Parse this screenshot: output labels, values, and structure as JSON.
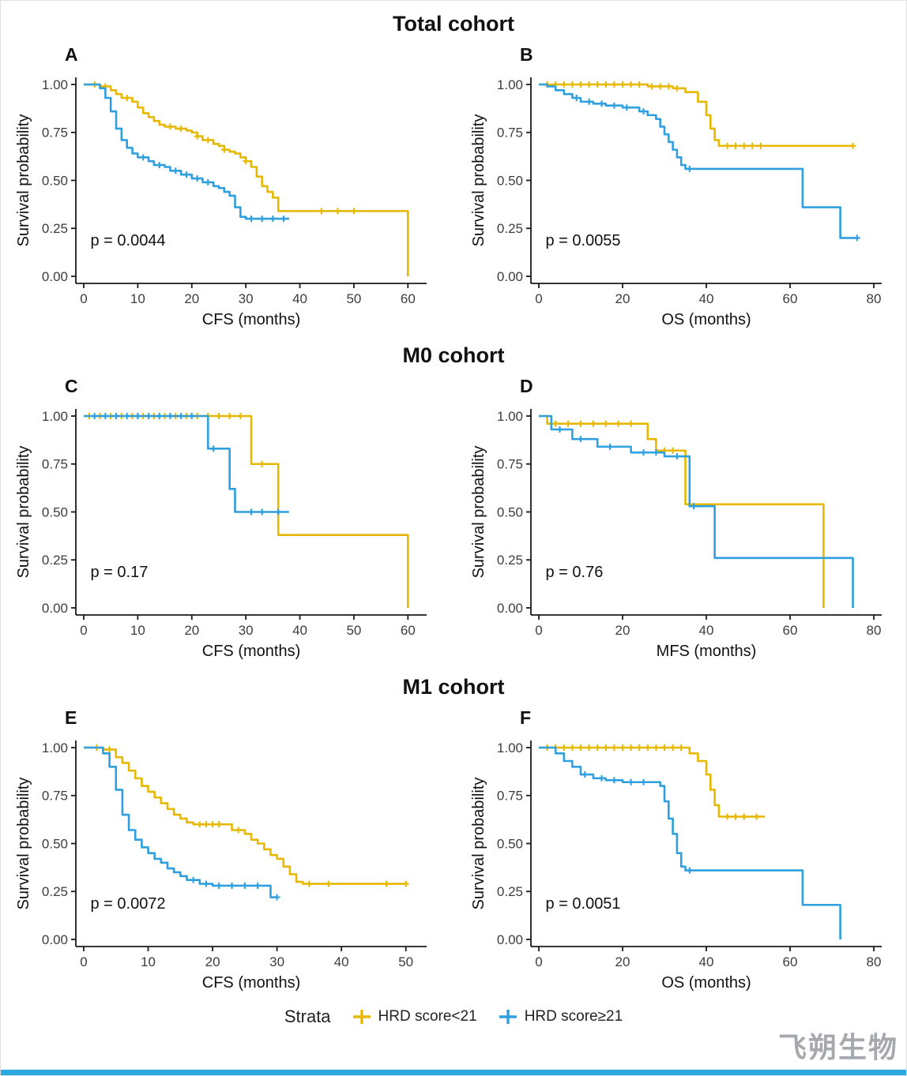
{
  "figure": {
    "rows": [
      {
        "title": "Total cohort"
      },
      {
        "title": "M0 cohort"
      },
      {
        "title": "M1 cohort"
      }
    ]
  },
  "colors": {
    "gold": "#E7B800",
    "blue": "#2E9FDF",
    "axis": "#1a1a1a"
  },
  "legend": {
    "title": "Strata",
    "items": [
      {
        "label": "HRD score<21",
        "color": "gold"
      },
      {
        "label": "HRD score≥21",
        "color": "blue"
      }
    ]
  },
  "watermark": "飞朔生物",
  "chart_data": [
    {
      "type": "line",
      "variant": "kaplan-meier-step",
      "label": "A",
      "row_title": "Total cohort",
      "xlabel": "CFS (months)",
      "ylabel": "Survival probability",
      "p_value": "p = 0.0044",
      "xlim": [
        0,
        62
      ],
      "x_ticks": [
        0,
        10,
        20,
        30,
        40,
        50,
        60
      ],
      "y_ticks": [
        0,
        0.25,
        0.5,
        0.75,
        1
      ],
      "series": [
        {
          "name": "HRD score<21",
          "color": "gold",
          "points": [
            [
              0,
              1.0
            ],
            [
              3,
              0.99
            ],
            [
              5,
              0.97
            ],
            [
              6,
              0.95
            ],
            [
              7,
              0.93
            ],
            [
              9,
              0.91
            ],
            [
              10,
              0.88
            ],
            [
              11,
              0.85
            ],
            [
              12,
              0.83
            ],
            [
              13,
              0.81
            ],
            [
              14,
              0.79
            ],
            [
              15,
              0.78
            ],
            [
              17,
              0.77
            ],
            [
              19,
              0.76
            ],
            [
              20,
              0.75
            ],
            [
              21,
              0.73
            ],
            [
              22,
              0.71
            ],
            [
              24,
              0.69
            ],
            [
              25,
              0.68
            ],
            [
              26,
              0.66
            ],
            [
              27,
              0.65
            ],
            [
              28,
              0.64
            ],
            [
              29,
              0.62
            ],
            [
              30,
              0.6
            ],
            [
              31,
              0.57
            ],
            [
              32,
              0.52
            ],
            [
              33,
              0.47
            ],
            [
              34,
              0.44
            ],
            [
              35,
              0.41
            ],
            [
              36,
              0.34
            ],
            [
              60,
              0.0
            ]
          ],
          "censors": [
            2,
            4,
            8,
            16,
            18,
            21,
            23,
            26,
            30,
            44,
            47,
            50
          ]
        },
        {
          "name": "HRD score≥21",
          "color": "blue",
          "points": [
            [
              0,
              1.0
            ],
            [
              3,
              0.98
            ],
            [
              4,
              0.93
            ],
            [
              5,
              0.86
            ],
            [
              6,
              0.77
            ],
            [
              7,
              0.71
            ],
            [
              8,
              0.67
            ],
            [
              9,
              0.64
            ],
            [
              10,
              0.62
            ],
            [
              12,
              0.6
            ],
            [
              13,
              0.58
            ],
            [
              15,
              0.57
            ],
            [
              16,
              0.55
            ],
            [
              18,
              0.53
            ],
            [
              20,
              0.51
            ],
            [
              22,
              0.49
            ],
            [
              24,
              0.47
            ],
            [
              25,
              0.46
            ],
            [
              26,
              0.44
            ],
            [
              27,
              0.42
            ],
            [
              28,
              0.36
            ],
            [
              29,
              0.31
            ],
            [
              30,
              0.3
            ],
            [
              38,
              0.3
            ]
          ],
          "censors": [
            11,
            14,
            17,
            19,
            21,
            23,
            31,
            33,
            35,
            37
          ]
        }
      ]
    },
    {
      "type": "line",
      "variant": "kaplan-meier-step",
      "label": "B",
      "row_title": "Total cohort",
      "xlabel": "OS (months)",
      "ylabel": "Survival probability",
      "p_value": "p = 0.0055",
      "xlim": [
        0,
        80
      ],
      "x_ticks": [
        0,
        20,
        40,
        60,
        80
      ],
      "y_ticks": [
        0,
        0.25,
        0.5,
        0.75,
        1
      ],
      "series": [
        {
          "name": "HRD score<21",
          "color": "gold",
          "points": [
            [
              0,
              1.0
            ],
            [
              26,
              0.99
            ],
            [
              32,
              0.98
            ],
            [
              35,
              0.96
            ],
            [
              38,
              0.91
            ],
            [
              40,
              0.84
            ],
            [
              41,
              0.77
            ],
            [
              42,
              0.71
            ],
            [
              43,
              0.68
            ],
            [
              75,
              0.68
            ]
          ],
          "censors": [
            2,
            4,
            6,
            8,
            10,
            12,
            14,
            16,
            18,
            20,
            22,
            24,
            27,
            29,
            31,
            33,
            45,
            47,
            49,
            51,
            53,
            75
          ]
        },
        {
          "name": "HRD score≥21",
          "color": "blue",
          "points": [
            [
              0,
              1.0
            ],
            [
              2,
              0.99
            ],
            [
              4,
              0.97
            ],
            [
              6,
              0.95
            ],
            [
              8,
              0.93
            ],
            [
              10,
              0.91
            ],
            [
              13,
              0.9
            ],
            [
              16,
              0.89
            ],
            [
              20,
              0.88
            ],
            [
              24,
              0.86
            ],
            [
              26,
              0.84
            ],
            [
              28,
              0.82
            ],
            [
              29,
              0.78
            ],
            [
              30,
              0.74
            ],
            [
              31,
              0.7
            ],
            [
              32,
              0.66
            ],
            [
              33,
              0.62
            ],
            [
              34,
              0.58
            ],
            [
              35,
              0.56
            ],
            [
              63,
              0.36
            ],
            [
              72,
              0.2
            ],
            [
              76,
              0.2
            ]
          ],
          "censors": [
            9,
            12,
            15,
            18,
            21,
            25,
            36,
            76
          ]
        }
      ]
    },
    {
      "type": "line",
      "variant": "kaplan-meier-step",
      "label": "C",
      "row_title": "M0 cohort",
      "xlabel": "CFS (months)",
      "ylabel": "Survival probability",
      "p_value": "p = 0.17",
      "xlim": [
        0,
        62
      ],
      "x_ticks": [
        0,
        10,
        20,
        30,
        40,
        50,
        60
      ],
      "y_ticks": [
        0,
        0.25,
        0.5,
        0.75,
        1
      ],
      "series": [
        {
          "name": "HRD score<21",
          "color": "gold",
          "points": [
            [
              0,
              1.0
            ],
            [
              31,
              0.75
            ],
            [
              36,
              0.38
            ],
            [
              60,
              0.0
            ]
          ],
          "censors": [
            1,
            3,
            5,
            7,
            9,
            11,
            13,
            15,
            17,
            19,
            21,
            23,
            25,
            27,
            29,
            33
          ]
        },
        {
          "name": "HRD score≥21",
          "color": "blue",
          "points": [
            [
              0,
              1.0
            ],
            [
              23,
              0.83
            ],
            [
              27,
              0.62
            ],
            [
              28,
              0.5
            ],
            [
              38,
              0.5
            ]
          ],
          "censors": [
            2,
            4,
            6,
            8,
            10,
            12,
            14,
            16,
            18,
            20,
            24,
            31,
            33,
            36
          ]
        }
      ]
    },
    {
      "type": "line",
      "variant": "kaplan-meier-step",
      "label": "D",
      "row_title": "M0 cohort",
      "xlabel": "MFS (months)",
      "ylabel": "Survival probability",
      "p_value": "p = 0.76",
      "xlim": [
        0,
        80
      ],
      "x_ticks": [
        0,
        20,
        40,
        60,
        80
      ],
      "y_ticks": [
        0,
        0.25,
        0.5,
        0.75,
        1
      ],
      "series": [
        {
          "name": "HRD score<21",
          "color": "gold",
          "points": [
            [
              0,
              1.0
            ],
            [
              2,
              0.96
            ],
            [
              26,
              0.88
            ],
            [
              28,
              0.82
            ],
            [
              35,
              0.54
            ],
            [
              68,
              0.0
            ]
          ],
          "censors": [
            4,
            7,
            10,
            13,
            16,
            19,
            22,
            30,
            32,
            36
          ]
        },
        {
          "name": "HRD score≥21",
          "color": "blue",
          "points": [
            [
              0,
              1.0
            ],
            [
              3,
              0.93
            ],
            [
              8,
              0.88
            ],
            [
              14,
              0.84
            ],
            [
              22,
              0.81
            ],
            [
              30,
              0.79
            ],
            [
              36,
              0.53
            ],
            [
              42,
              0.26
            ],
            [
              75,
              0.0
            ]
          ],
          "censors": [
            5,
            10,
            17,
            25,
            28,
            33,
            37
          ]
        }
      ]
    },
    {
      "type": "line",
      "variant": "kaplan-meier-step",
      "label": "E",
      "row_title": "M1 cohort",
      "xlabel": "CFS (months)",
      "ylabel": "Survival probability",
      "p_value": "p = 0.0072",
      "xlim": [
        0,
        52
      ],
      "x_ticks": [
        0,
        10,
        20,
        30,
        40,
        50
      ],
      "y_ticks": [
        0,
        0.25,
        0.5,
        0.75,
        1
      ],
      "series": [
        {
          "name": "HRD score<21",
          "color": "gold",
          "points": [
            [
              0,
              1.0
            ],
            [
              3,
              0.99
            ],
            [
              5,
              0.95
            ],
            [
              6,
              0.92
            ],
            [
              7,
              0.88
            ],
            [
              8,
              0.84
            ],
            [
              9,
              0.8
            ],
            [
              10,
              0.77
            ],
            [
              11,
              0.74
            ],
            [
              12,
              0.71
            ],
            [
              13,
              0.68
            ],
            [
              14,
              0.65
            ],
            [
              15,
              0.63
            ],
            [
              16,
              0.61
            ],
            [
              17,
              0.6
            ],
            [
              22,
              0.6
            ],
            [
              23,
              0.57
            ],
            [
              25,
              0.55
            ],
            [
              26,
              0.52
            ],
            [
              27,
              0.5
            ],
            [
              28,
              0.47
            ],
            [
              29,
              0.44
            ],
            [
              30,
              0.42
            ],
            [
              31,
              0.38
            ],
            [
              32,
              0.34
            ],
            [
              33,
              0.3
            ],
            [
              34,
              0.29
            ],
            [
              50,
              0.29
            ]
          ],
          "censors": [
            2,
            4,
            18,
            19,
            20,
            21,
            24,
            35,
            38,
            47,
            50
          ]
        },
        {
          "name": "HRD score≥21",
          "color": "blue",
          "points": [
            [
              0,
              1.0
            ],
            [
              3,
              0.97
            ],
            [
              4,
              0.9
            ],
            [
              5,
              0.78
            ],
            [
              6,
              0.65
            ],
            [
              7,
              0.57
            ],
            [
              8,
              0.52
            ],
            [
              9,
              0.48
            ],
            [
              10,
              0.45
            ],
            [
              11,
              0.42
            ],
            [
              12,
              0.4
            ],
            [
              13,
              0.37
            ],
            [
              14,
              0.35
            ],
            [
              15,
              0.33
            ],
            [
              16,
              0.31
            ],
            [
              18,
              0.29
            ],
            [
              20,
              0.28
            ],
            [
              28,
              0.28
            ],
            [
              29,
              0.22
            ],
            [
              30,
              0.22
            ]
          ],
          "censors": [
            17,
            19,
            21,
            23,
            25,
            27,
            30
          ]
        }
      ]
    },
    {
      "type": "line",
      "variant": "kaplan-meier-step",
      "label": "F",
      "row_title": "M1 cohort",
      "xlabel": "OS (months)",
      "ylabel": "Survival probability",
      "p_value": "p = 0.0051",
      "xlim": [
        0,
        80
      ],
      "x_ticks": [
        0,
        20,
        40,
        60,
        80
      ],
      "y_ticks": [
        0,
        0.25,
        0.5,
        0.75,
        1
      ],
      "series": [
        {
          "name": "HRD score<21",
          "color": "gold",
          "points": [
            [
              0,
              1.0
            ],
            [
              36,
              0.97
            ],
            [
              38,
              0.93
            ],
            [
              40,
              0.86
            ],
            [
              41,
              0.78
            ],
            [
              42,
              0.7
            ],
            [
              43,
              0.64
            ],
            [
              54,
              0.64
            ]
          ],
          "censors": [
            2,
            4,
            6,
            8,
            10,
            12,
            14,
            16,
            18,
            20,
            22,
            24,
            26,
            28,
            30,
            32,
            34,
            45,
            47,
            49,
            52
          ]
        },
        {
          "name": "HRD score≥21",
          "color": "blue",
          "points": [
            [
              0,
              1.0
            ],
            [
              4,
              0.97
            ],
            [
              6,
              0.93
            ],
            [
              8,
              0.9
            ],
            [
              10,
              0.86
            ],
            [
              13,
              0.84
            ],
            [
              16,
              0.83
            ],
            [
              20,
              0.82
            ],
            [
              28,
              0.82
            ],
            [
              29,
              0.8
            ],
            [
              30,
              0.72
            ],
            [
              31,
              0.63
            ],
            [
              32,
              0.55
            ],
            [
              33,
              0.45
            ],
            [
              34,
              0.38
            ],
            [
              35,
              0.36
            ],
            [
              63,
              0.18
            ],
            [
              72,
              0.0
            ]
          ],
          "censors": [
            11,
            15,
            18,
            22,
            25,
            36
          ]
        }
      ]
    }
  ]
}
